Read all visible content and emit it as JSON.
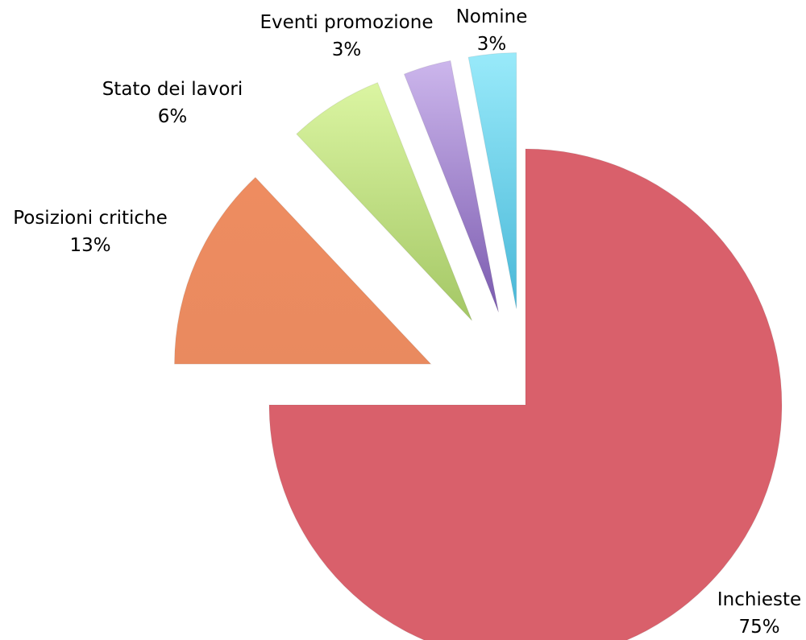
{
  "chart_data": {
    "type": "pie",
    "title": "",
    "legend": "none",
    "slices": [
      {
        "name": "Inchieste",
        "value": 75,
        "label": "75%",
        "color": "#d9606b",
        "gradient_end": "#d9606b"
      },
      {
        "name": "Posizioni critiche",
        "value": 13,
        "label": "13%",
        "color": "#ee8c60",
        "gradient_end": "#e98a5f"
      },
      {
        "name": "Stato dei lavori",
        "value": 6,
        "label": "6%",
        "color": "#dbf5a2",
        "gradient_end": "#a4c765"
      },
      {
        "name": "Eventi promozione",
        "value": 3,
        "label": "3%",
        "color": "#ccb6ec",
        "gradient_end": "#7b5baf"
      },
      {
        "name": "Nomine",
        "value": 3,
        "label": "3%",
        "color": "#99eafa",
        "gradient_end": "#49b8d8"
      }
    ]
  }
}
